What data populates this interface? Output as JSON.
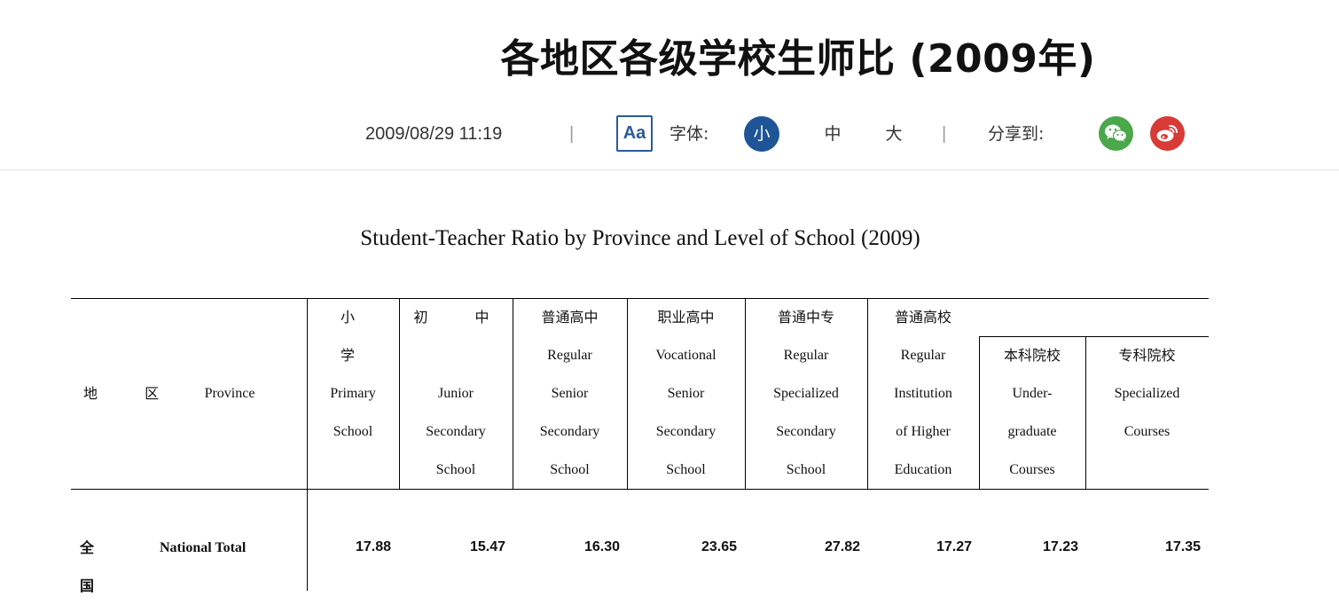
{
  "page": {
    "title": "各地区各级学校生师比 (2009年)",
    "date": "2009/08/29 11:19",
    "separator": "|",
    "font_label": "字体:",
    "font_sizes": [
      "小",
      "中",
      "大"
    ],
    "share_label": "分享到:",
    "font_icon_text": "Aa",
    "accent_color": "#1f5596"
  },
  "share": {
    "icons": [
      "wechat-icon",
      "weibo-icon"
    ]
  },
  "table": {
    "caption": "Student-Teacher Ratio by Province and Level of School (2009)",
    "region_cn": "地 区",
    "region_en": "Province",
    "columns": [
      {
        "cn": "小 学",
        "en": [
          "Primary",
          "School"
        ]
      },
      {
        "cn": "初 中",
        "en": [
          "Junior",
          "Secondary",
          "School"
        ]
      },
      {
        "cn": "普通高中",
        "en": [
          "Regular",
          "Senior",
          "Secondary",
          "School"
        ]
      },
      {
        "cn": "职业高中",
        "en": [
          "Vocational",
          "Senior",
          "Secondary",
          "School"
        ]
      },
      {
        "cn": "普通中专",
        "en": [
          "Regular",
          "Specialized",
          "Secondary",
          "School"
        ]
      },
      {
        "cn": "普通高校",
        "en": [
          "Regular",
          "Institution",
          "of Higher",
          "Education"
        ]
      },
      {
        "cn": "本科院校",
        "en": [
          "Under-",
          "graduate",
          "Courses"
        ]
      },
      {
        "cn": "专科院校",
        "en": [
          "Specialized",
          "Courses"
        ]
      }
    ],
    "rows": [
      {
        "region_cn": "全 国",
        "region_en": "National Total",
        "values": [
          "17.88",
          "15.47",
          "16.30",
          "23.65",
          "27.82",
          "17.27",
          "17.23",
          "17.35"
        ]
      }
    ]
  }
}
